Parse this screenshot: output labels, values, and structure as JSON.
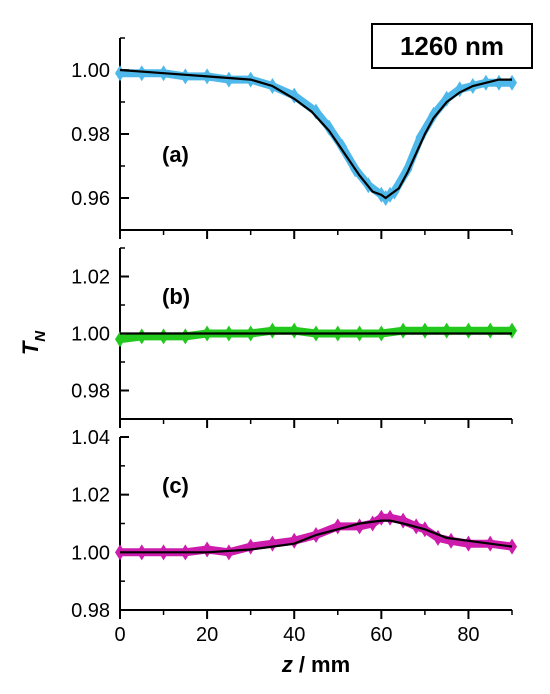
{
  "wavelength_label": "1260 nm",
  "chart_data": [
    {
      "type": "scatter",
      "panel_label": "(a)",
      "xlim": [
        0,
        90
      ],
      "ylim": [
        0.95,
        1.01
      ],
      "y_ticks": [
        "0.96",
        "0.98",
        "1.00"
      ],
      "marker_color": "#4fb8ea",
      "fit_color": "#000000",
      "series": [
        {
          "kind": "data",
          "x": [
            0,
            5,
            10,
            15,
            20,
            25,
            30,
            35,
            40,
            45,
            48,
            51,
            54,
            57,
            60,
            61,
            62,
            63,
            66,
            69,
            72,
            75,
            78,
            81,
            84,
            87,
            90
          ],
          "y": [
            0.999,
            0.999,
            0.999,
            0.998,
            0.998,
            0.997,
            0.997,
            0.995,
            0.992,
            0.987,
            0.982,
            0.976,
            0.969,
            0.964,
            0.961,
            0.96,
            0.961,
            0.962,
            0.969,
            0.979,
            0.986,
            0.991,
            0.994,
            0.995,
            0.996,
            0.996,
            0.996
          ]
        },
        {
          "kind": "fit",
          "x": [
            0,
            10,
            20,
            30,
            35,
            40,
            44,
            48,
            52,
            55,
            58,
            60,
            61,
            62,
            64,
            66,
            68,
            70,
            72,
            75,
            78,
            81,
            84,
            87,
            90
          ],
          "y": [
            1.0,
            0.999,
            0.998,
            0.997,
            0.995,
            0.991,
            0.987,
            0.981,
            0.973,
            0.967,
            0.962,
            0.961,
            0.96,
            0.961,
            0.963,
            0.968,
            0.974,
            0.98,
            0.985,
            0.99,
            0.993,
            0.995,
            0.996,
            0.997,
            0.997
          ]
        }
      ]
    },
    {
      "type": "scatter",
      "panel_label": "(b)",
      "xlim": [
        0,
        90
      ],
      "ylim": [
        0.97,
        1.03
      ],
      "y_ticks": [
        "0.98",
        "1.00",
        "1.02"
      ],
      "marker_color": "#23c81d",
      "fit_color": "#000000",
      "series": [
        {
          "kind": "data",
          "x": [
            0,
            5,
            10,
            15,
            20,
            25,
            30,
            35,
            40,
            45,
            50,
            55,
            60,
            65,
            70,
            75,
            80,
            85,
            90
          ],
          "y": [
            0.998,
            0.999,
            0.999,
            0.999,
            1.0,
            1.0,
            1.0,
            1.001,
            1.001,
            1.0,
            1.0,
            1.0,
            1.0,
            1.001,
            1.001,
            1.001,
            1.001,
            1.001,
            1.001
          ]
        },
        {
          "kind": "fit",
          "x": [
            0,
            10,
            20,
            30,
            40,
            50,
            60,
            70,
            80,
            90
          ],
          "y": [
            1.0,
            1.0,
            1.0,
            1.0,
            1.0,
            1.0,
            1.0,
            1.0,
            1.0,
            1.0
          ]
        }
      ]
    },
    {
      "type": "scatter",
      "panel_label": "(c)",
      "xlim": [
        0,
        90
      ],
      "ylim": [
        0.98,
        1.04
      ],
      "y_ticks": [
        "0.98",
        "1.00",
        "1.02",
        "1.04"
      ],
      "x_ticks": [
        "0",
        "20",
        "40",
        "60",
        "80"
      ],
      "xlabel": "z",
      "xlabel_unit": "/ mm",
      "marker_color": "#cd1bac",
      "fit_color": "#000000",
      "series": [
        {
          "kind": "data",
          "x": [
            0,
            5,
            10,
            15,
            20,
            25,
            30,
            35,
            40,
            45,
            50,
            55,
            58,
            60,
            62,
            65,
            68,
            70,
            73,
            76,
            80,
            85,
            90
          ],
          "y": [
            1.0,
            1.0,
            1.0,
            1.0,
            1.001,
            1.0,
            1.002,
            1.003,
            1.004,
            1.006,
            1.009,
            1.009,
            1.01,
            1.012,
            1.012,
            1.011,
            1.009,
            1.008,
            1.005,
            1.004,
            1.003,
            1.003,
            1.002
          ]
        },
        {
          "kind": "fit",
          "x": [
            0,
            10,
            20,
            30,
            35,
            40,
            45,
            50,
            55,
            60,
            62,
            65,
            70,
            75,
            80,
            85,
            90
          ],
          "y": [
            1.0,
            1.0,
            1.0,
            1.001,
            1.002,
            1.003,
            1.006,
            1.008,
            1.01,
            1.011,
            1.011,
            1.01,
            1.008,
            1.005,
            1.004,
            1.003,
            1.002
          ]
        }
      ]
    }
  ],
  "ylabel_main": "T",
  "ylabel_sub": "N"
}
